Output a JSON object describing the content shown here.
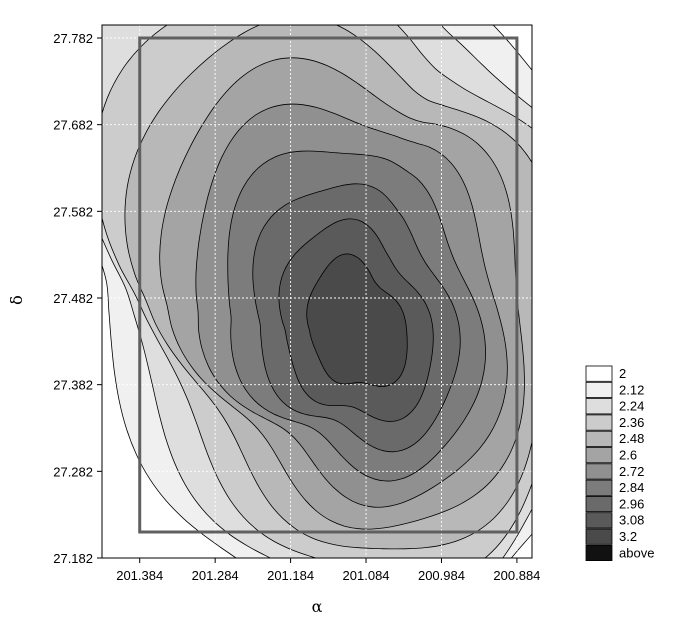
{
  "chart_data": {
    "type": "contour",
    "xlabel": "α",
    "ylabel": "δ",
    "x_reversed": true,
    "xlim": [
      201.434,
      200.864
    ],
    "ylim": [
      27.182,
      27.797
    ],
    "x_ticks": [
      "201.384",
      "201.284",
      "201.184",
      "201.084",
      "200.984",
      "200.884"
    ],
    "x_tick_values": [
      201.384,
      201.284,
      201.184,
      201.084,
      200.984,
      200.884
    ],
    "y_ticks": [
      "27.182",
      "27.282",
      "27.382",
      "27.482",
      "27.582",
      "27.682",
      "27.782"
    ],
    "y_tick_values": [
      27.182,
      27.282,
      27.382,
      27.482,
      27.582,
      27.682,
      27.782
    ],
    "grid": true,
    "legend_position": "bottom-right",
    "levels": [
      {
        "label": "2",
        "color": "#ffffff"
      },
      {
        "label": "2.12",
        "color": "#f0f0f0"
      },
      {
        "label": "2.24",
        "color": "#dedede"
      },
      {
        "label": "2.36",
        "color": "#cccccc"
      },
      {
        "label": "2.48",
        "color": "#b8b8b8"
      },
      {
        "label": "2.6",
        "color": "#a4a4a4"
      },
      {
        "label": "2.72",
        "color": "#909090"
      },
      {
        "label": "2.84",
        "color": "#7c7c7c"
      },
      {
        "label": "2.96",
        "color": "#6a6a6a"
      },
      {
        "label": "3.08",
        "color": "#5a5a5a"
      },
      {
        "label": "3.2",
        "color": "#4a4a4a"
      },
      {
        "label": "above",
        "color": "#111111"
      }
    ],
    "field_peak": {
      "x": 201.094,
      "y": 27.445,
      "value": 3.3
    },
    "field_rect": {
      "x": [
        201.384,
        200.884
      ],
      "y": [
        27.212,
        27.782
      ]
    }
  }
}
